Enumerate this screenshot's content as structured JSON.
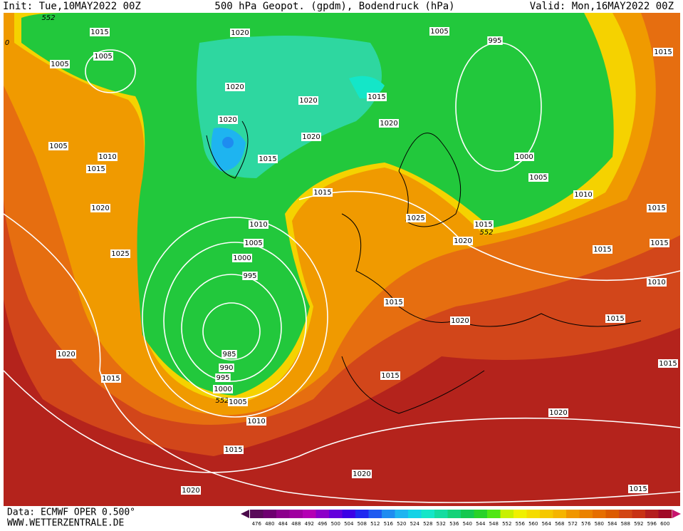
{
  "header": {
    "init": "Init: Tue,10MAY2022 00Z",
    "title": "500 hPa Geopot. (gpdm), Bodendruck (hPa)",
    "valid": "Valid: Mon,16MAY2022 00Z"
  },
  "isobar_labels": [
    552,
    1015,
    1020,
    1005,
    995,
    1015,
    1005,
    1005,
    1020,
    1015,
    1020,
    1020,
    1020,
    1020,
    1005,
    1010,
    1015,
    1000,
    1015,
    1005,
    1015,
    1010,
    1020,
    1015,
    1025,
    1015,
    552,
    1010,
    1015,
    1020,
    1005,
    1015,
    1025,
    1000,
    995,
    1010,
    1015,
    1020,
    1015,
    985,
    1020,
    990,
    1015,
    995,
    1015,
    1015,
    1000,
    552,
    1005,
    1020,
    1010,
    1015,
    1020,
    1020,
    1015,
    0
  ],
  "colorbar": {
    "labels": [
      476,
      480,
      484,
      488,
      492,
      496,
      500,
      504,
      508,
      512,
      516,
      520,
      524,
      528,
      532,
      536,
      540,
      544,
      548,
      552,
      556,
      560,
      564,
      568,
      572,
      576,
      580,
      584,
      588,
      592,
      596,
      600
    ],
    "colors": [
      "#5a0a5a",
      "#6e0070",
      "#8c008c",
      "#a000a0",
      "#b400b4",
      "#8c00c8",
      "#6400dc",
      "#3c00e6",
      "#1e28f0",
      "#1e5af0",
      "#1e8cf0",
      "#1eb4f0",
      "#14d2e6",
      "#14e6c8",
      "#14dca0",
      "#14d278",
      "#14c850",
      "#28d228",
      "#50e614",
      "#c8f000",
      "#f0f000",
      "#f5dc00",
      "#f5c800",
      "#f5b400",
      "#f09600",
      "#eb8200",
      "#e66e00",
      "#dc5a00",
      "#d24614",
      "#c83214",
      "#b41e1e",
      "#a00a28"
    ]
  },
  "footer": {
    "source": "Data: ECMWF OPER 0.500°",
    "site": "WWW.WETTERZENTRALE.DE"
  }
}
